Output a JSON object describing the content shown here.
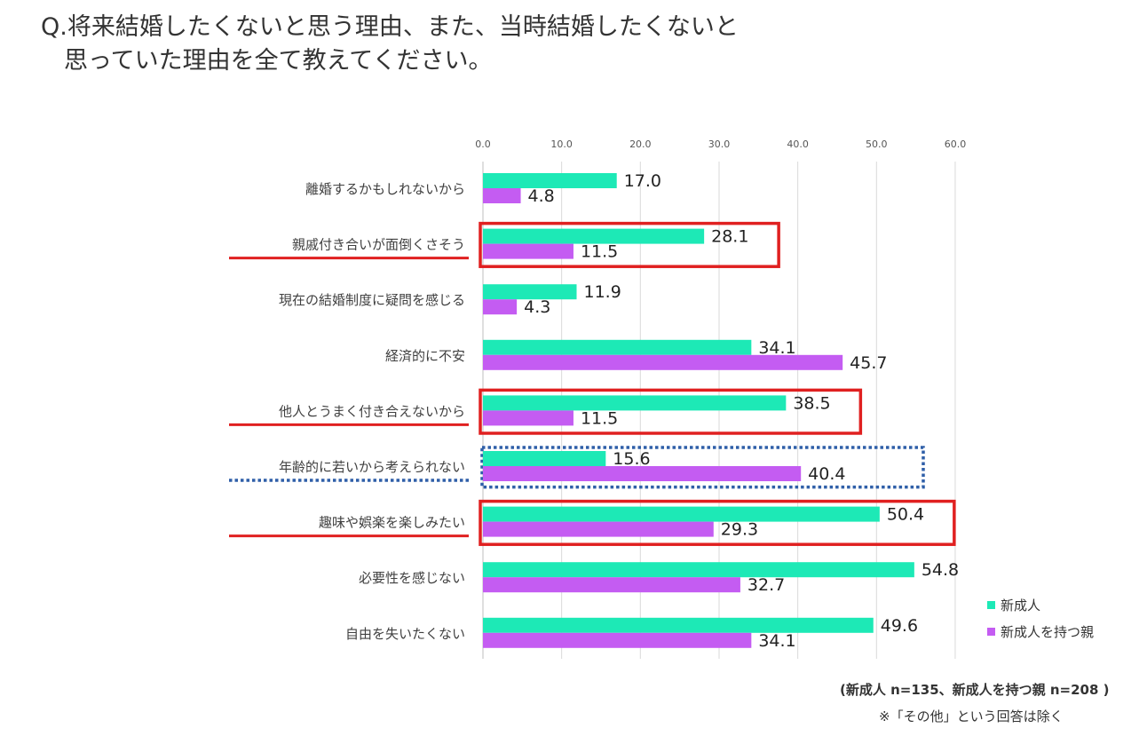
{
  "question": {
    "line1": "Q.将来結婚したくないと思う理由、また、当時結婚したくないと",
    "line2": "思っていた理由を全て教えてください。"
  },
  "chart_data": {
    "type": "bar",
    "orientation": "horizontal",
    "categories": [
      "離婚するかもしれないから",
      "親戚付き合いが面倒くさそう",
      "現在の結婚制度に疑問を感じる",
      "経済的に不安",
      "他人とうまく付き合えないから",
      "年齢的に若いから考えられない",
      "趣味や娯楽を楽しみたい",
      "必要性を感じない",
      "自由を失いたくない"
    ],
    "series": [
      {
        "name": "新成人",
        "color": "#1de9b6",
        "values": [
          17.0,
          28.1,
          11.9,
          34.1,
          38.5,
          15.6,
          50.4,
          54.8,
          49.6
        ]
      },
      {
        "name": "新成人を持つ親",
        "color": "#c45cf2",
        "values": [
          4.8,
          11.5,
          4.3,
          45.7,
          11.5,
          40.4,
          29.3,
          32.7,
          34.1
        ]
      }
    ],
    "xlim": [
      0,
      60
    ],
    "xticks": [
      "0.0",
      "10.0",
      "20.0",
      "30.0",
      "40.0",
      "50.0",
      "60.0"
    ],
    "grid": true,
    "legend_position": "bottom-right",
    "highlight_solid": [
      1,
      4,
      6
    ],
    "highlight_dotted": [
      5
    ],
    "highlight_solid_color": "#e02020",
    "highlight_dotted_color": "#2f5fa8"
  },
  "notes": {
    "sample": "(新成人 n=135、新成人を持つ親 n=208 )",
    "other": "※「その他」という回答は除く"
  }
}
